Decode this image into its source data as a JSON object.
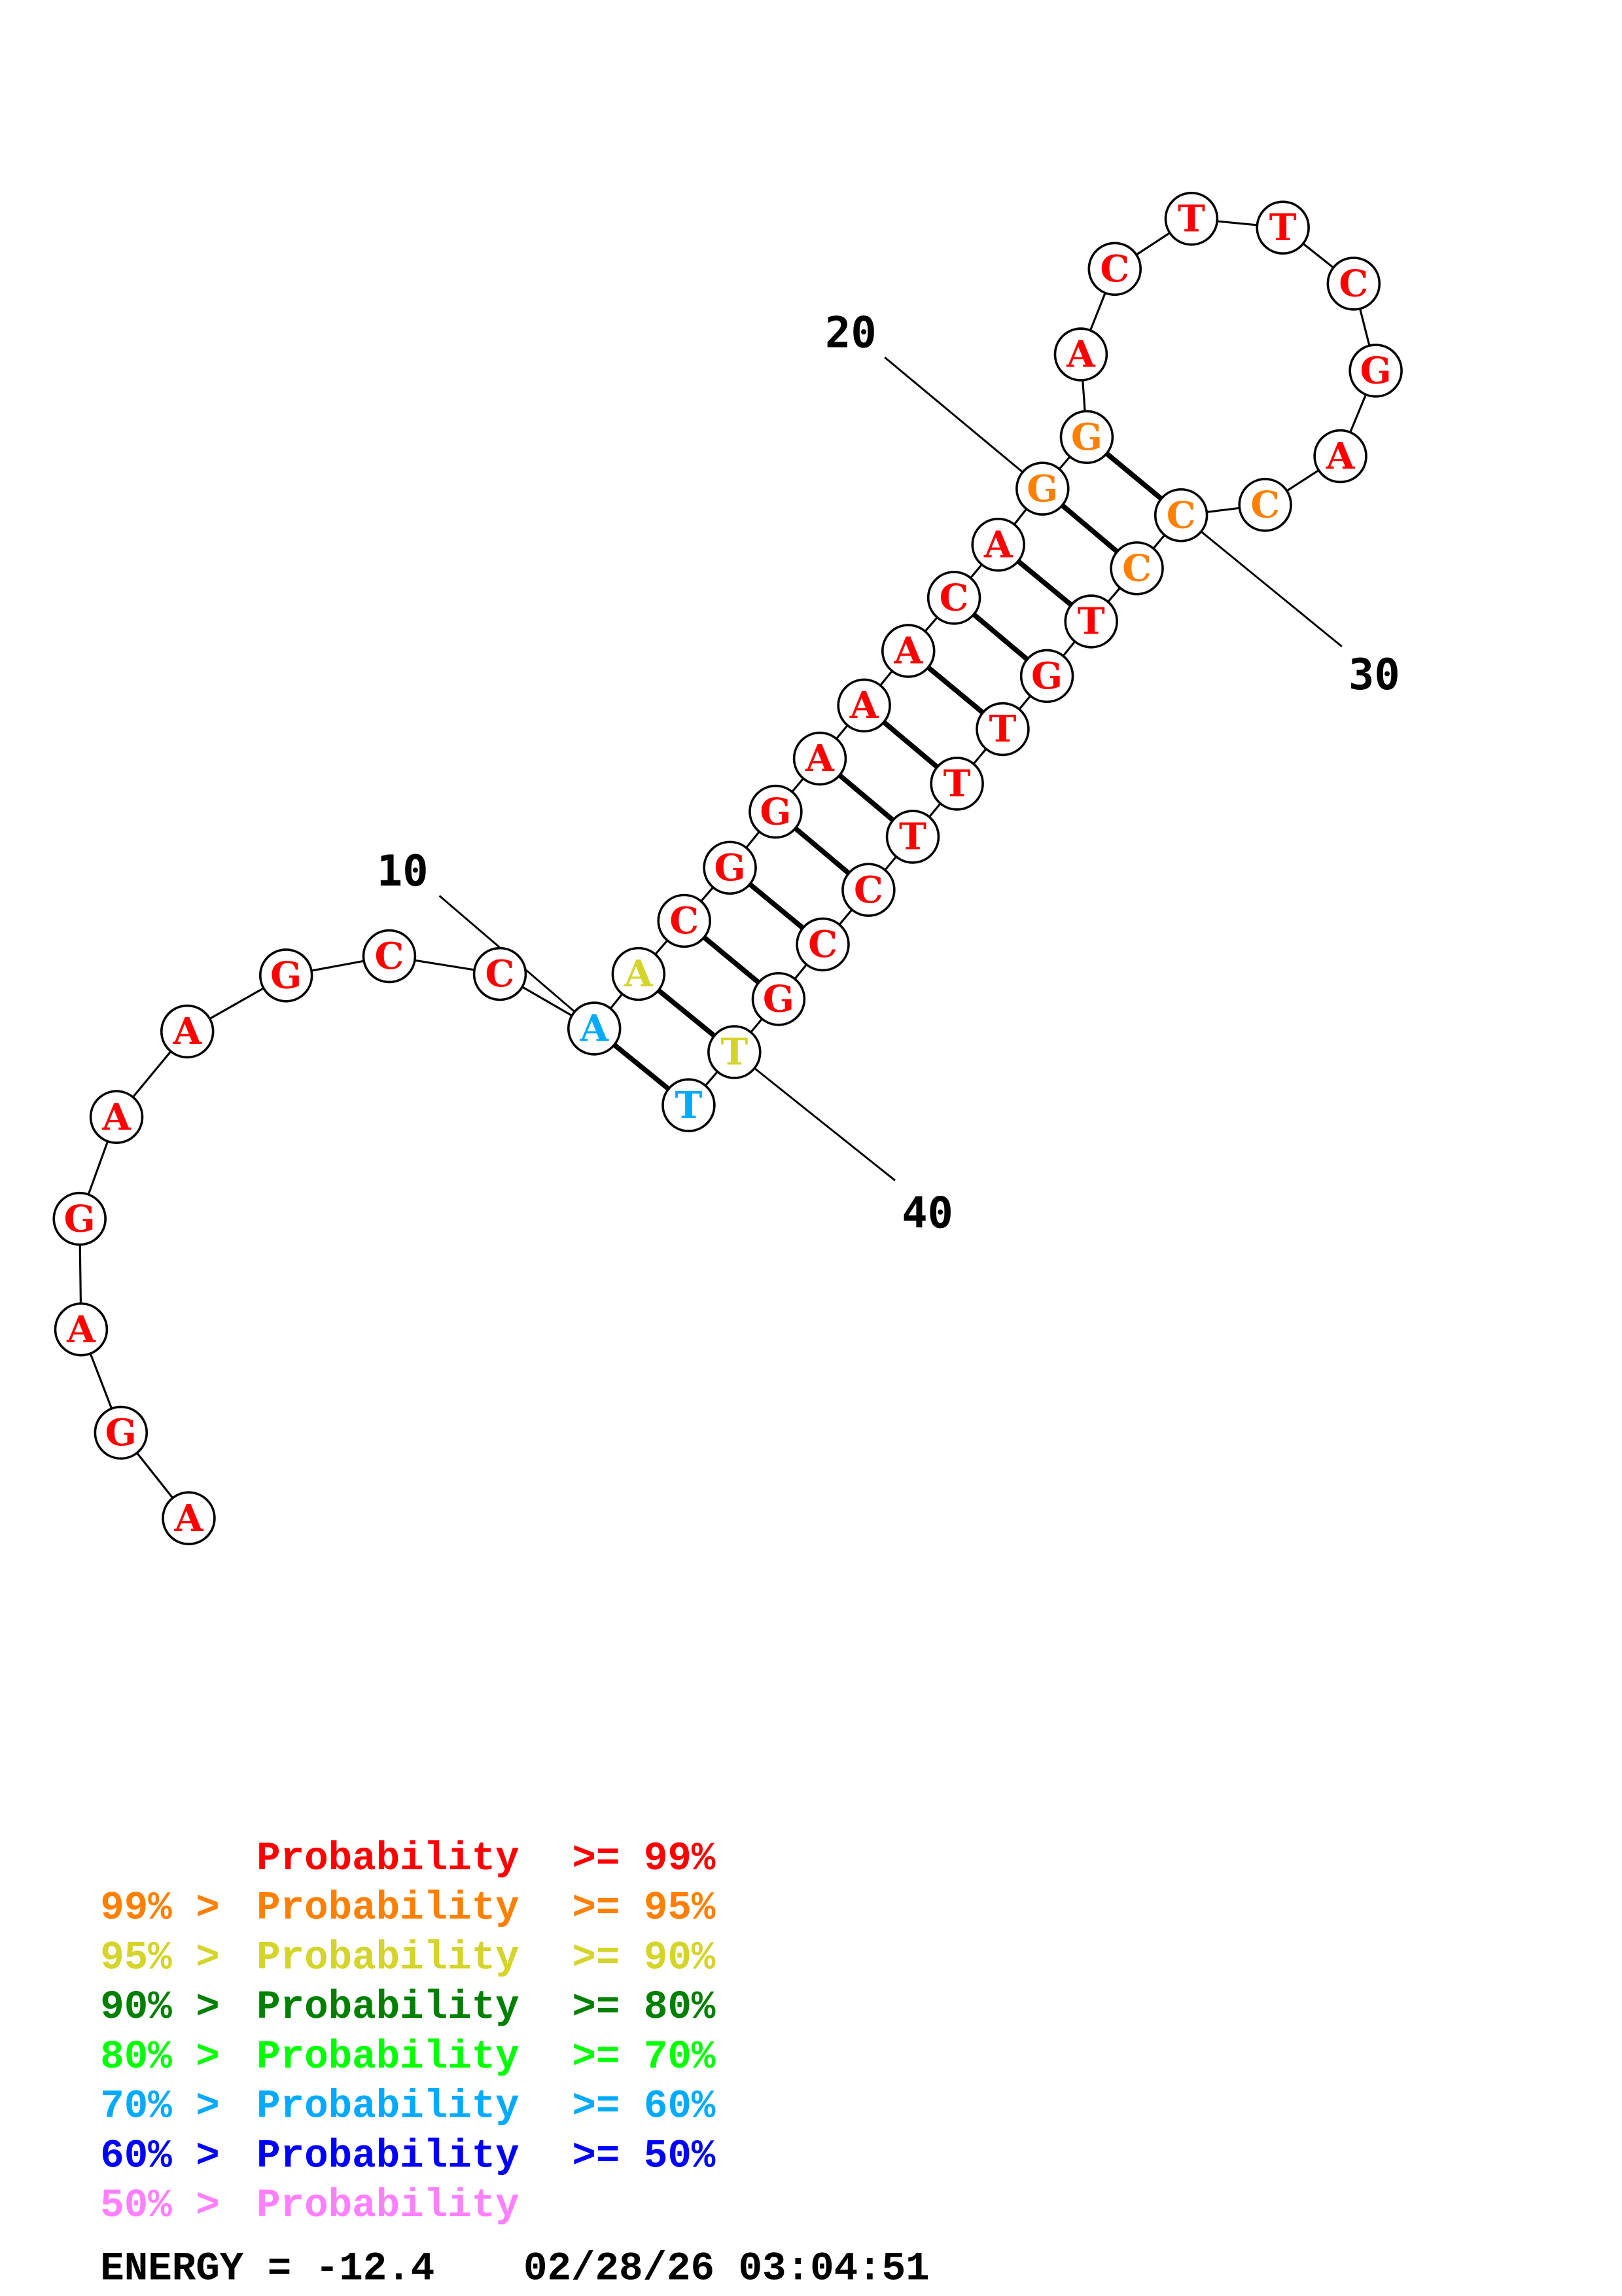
{
  "structure": {
    "sequence": [
      "A",
      "G",
      "A",
      "G",
      "A",
      "A",
      "G",
      "C",
      "C",
      "A",
      "A",
      "C",
      "G",
      "G",
      "A",
      "A",
      "A",
      "C",
      "A",
      "G",
      "G",
      "A",
      "C",
      "T",
      "T",
      "C",
      "G",
      "A",
      "C",
      "C",
      "C",
      "T",
      "G",
      "T",
      "T",
      "T",
      "C",
      "C",
      "G",
      "T",
      "T"
    ],
    "probability_class": [
      0,
      0,
      0,
      0,
      0,
      0,
      0,
      0,
      0,
      5,
      2,
      0,
      0,
      0,
      0,
      0,
      0,
      0,
      0,
      1,
      1,
      0,
      0,
      0,
      0,
      0,
      0,
      0,
      1,
      1,
      1,
      0,
      0,
      0,
      0,
      0,
      0,
      0,
      0,
      2,
      5
    ],
    "pairs": [
      [
        10,
        41
      ],
      [
        11,
        40
      ],
      [
        12,
        39
      ],
      [
        13,
        38
      ],
      [
        14,
        37
      ],
      [
        15,
        36
      ],
      [
        16,
        35
      ],
      [
        17,
        34
      ],
      [
        18,
        33
      ],
      [
        19,
        32
      ],
      [
        20,
        31
      ],
      [
        21,
        30
      ]
    ],
    "position_labels": [
      {
        "index": 10,
        "text": "10"
      },
      {
        "index": 20,
        "text": "20"
      },
      {
        "index": 30,
        "text": "30"
      },
      {
        "index": 40,
        "text": "40"
      }
    ]
  },
  "legend": {
    "items": [
      {
        "prefix": "",
        "label": "Probability",
        "suffix": ">= 99%",
        "color": "#FF0000"
      },
      {
        "prefix": "99% >",
        "label": "Probability",
        "suffix": ">= 95%",
        "color": "#FF8000"
      },
      {
        "prefix": "95% >",
        "label": "Probability",
        "suffix": ">= 90%",
        "color": "#D4D42A"
      },
      {
        "prefix": "90% >",
        "label": "Probability",
        "suffix": ">= 80%",
        "color": "#008000"
      },
      {
        "prefix": "80% >",
        "label": "Probability",
        "suffix": ">= 70%",
        "color": "#00FF00"
      },
      {
        "prefix": "70% >",
        "label": "Probability",
        "suffix": ">= 60%",
        "color": "#00AAFF"
      },
      {
        "prefix": "60% >",
        "label": "Probability",
        "suffix": ">= 50%",
        "color": "#0000FF"
      },
      {
        "prefix": "50% >",
        "label": "Probability",
        "suffix": "",
        "color": "#FF80FF"
      }
    ]
  },
  "footer": {
    "energy": "ENERGY = -12.4",
    "timestamp": "02/28/26 03:04:51"
  }
}
